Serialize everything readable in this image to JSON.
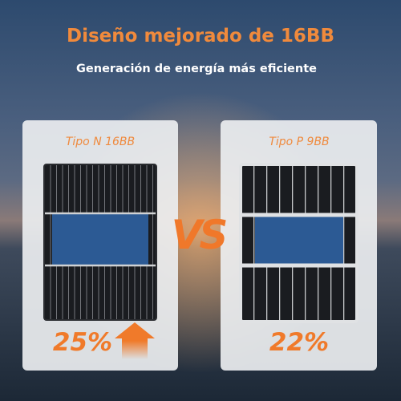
{
  "header": {
    "title": "Diseño mejorado de 16BB",
    "subtitle": "Generación de energía más eficiente"
  },
  "left_card": {
    "label": "Tipo N 16BB",
    "efficiency": "25%"
  },
  "vs": "VS",
  "right_card": {
    "label": "Tipo P 9BB",
    "efficiency": "22%"
  }
}
